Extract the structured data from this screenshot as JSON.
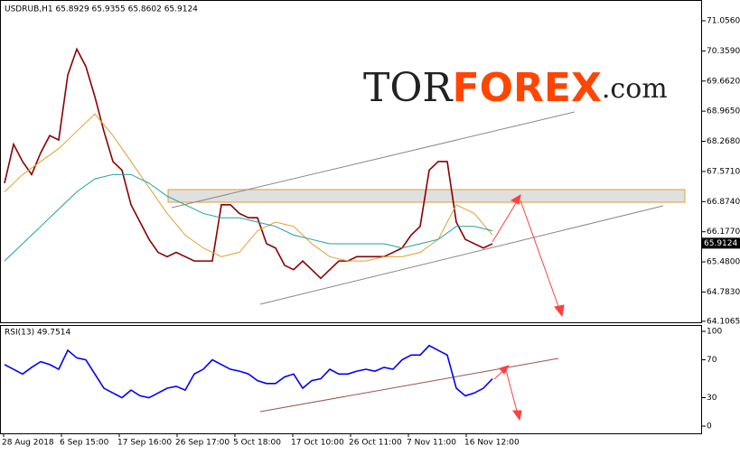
{
  "chart_data": [
    {
      "type": "line",
      "title": "USDRUB,H1  65.8929 65.9355 65.8602 65.9124",
      "ylim": [
        64.083,
        71.536
      ],
      "yticks": [
        {
          "value": 71.056,
          "label": "71.0560"
        },
        {
          "value": 70.359,
          "label": "70.3590"
        },
        {
          "value": 69.662,
          "label": "69.6620"
        },
        {
          "value": 68.965,
          "label": "68.9650"
        },
        {
          "value": 68.268,
          "label": "68.2680"
        },
        {
          "value": 67.571,
          "label": "67.5710"
        },
        {
          "value": 66.874,
          "label": "66.8740"
        },
        {
          "value": 66.177,
          "label": "66.1770"
        },
        {
          "value": 65.48,
          "label": "65.4800"
        },
        {
          "value": 64.783,
          "label": "64.7830"
        },
        {
          "value": 64.1065,
          "label": "64.1065"
        }
      ],
      "last_price": {
        "value": 65.9124,
        "label": "65.9124"
      },
      "logo": [
        "TOR",
        "FOREX",
        ".com"
      ],
      "series": [
        {
          "color": "#8b0000",
          "values": [
            67.3,
            68.2,
            67.8,
            67.5,
            68.0,
            68.4,
            68.3,
            69.8,
            70.4,
            70.0,
            69.3,
            68.5,
            67.8,
            67.6,
            66.8,
            66.4,
            66.0,
            65.7,
            65.6,
            65.7,
            65.6,
            65.5,
            65.5,
            65.5,
            66.8,
            66.8,
            66.6,
            66.5,
            66.5,
            65.9,
            65.8,
            65.4,
            65.3,
            65.5,
            65.3,
            65.1,
            65.3,
            65.5,
            65.5,
            65.6,
            65.6,
            65.6,
            65.6,
            65.7,
            65.8,
            66.1,
            66.3,
            67.6,
            67.8,
            67.8,
            66.4,
            66.0,
            65.9,
            65.8,
            65.9
          ]
        },
        {
          "color": "#e0a030",
          "values": [
            67.1,
            67.5,
            67.8,
            68.1,
            68.5,
            68.9,
            68.4,
            67.8,
            67.2,
            66.6,
            66.1,
            65.8,
            65.6,
            65.7,
            66.2,
            66.4,
            66.3,
            65.9,
            65.6,
            65.5,
            65.5,
            65.6,
            65.6,
            65.7,
            66.0,
            66.8,
            66.6,
            66.1
          ]
        },
        {
          "color": "#20a0a0",
          "values": [
            65.5,
            65.9,
            66.3,
            66.7,
            67.1,
            67.4,
            67.5,
            67.5,
            67.3,
            67.0,
            66.8,
            66.6,
            66.5,
            66.5,
            66.4,
            66.3,
            66.1,
            66.0,
            65.9,
            65.9,
            65.9,
            65.9,
            65.8,
            65.9,
            66.0,
            66.3,
            66.3,
            66.2
          ]
        }
      ]
    },
    {
      "type": "line",
      "title": "RSI(13) 49.7514",
      "ylim": [
        -7.6,
        106.7
      ],
      "yticks": [
        100,
        70,
        30,
        0
      ],
      "series": [
        {
          "color": "#0000ff",
          "values": [
            65,
            60,
            55,
            62,
            68,
            65,
            60,
            80,
            72,
            70,
            55,
            40,
            35,
            30,
            38,
            32,
            30,
            35,
            40,
            42,
            38,
            55,
            60,
            70,
            65,
            60,
            58,
            55,
            48,
            45,
            45,
            52,
            55,
            40,
            48,
            50,
            60,
            55,
            55,
            58,
            60,
            58,
            62,
            60,
            70,
            75,
            75,
            85,
            80,
            75,
            40,
            32,
            35,
            40,
            50
          ]
        }
      ],
      "x_labels": [
        "28 Aug 2018",
        "6 Sep 15:00",
        "17 Sep 16:00",
        "26 Sep 17:00",
        "5 Oct 18:00",
        "17 Oct 10:00",
        "26 Oct 11:00",
        "7 Nov 11:00",
        "16 Nov 12:00"
      ]
    }
  ]
}
